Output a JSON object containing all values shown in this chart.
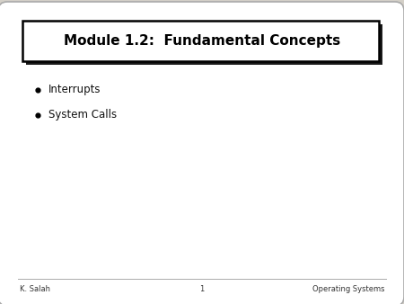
{
  "title": "Module 1.2:  Fundamental Concepts",
  "bullet_items": [
    "Interrupts",
    "System Calls"
  ],
  "footer_left": "K. Salah",
  "footer_center": "1",
  "footer_right": "Operating Systems",
  "bg_color": "#d4d0c8",
  "slide_bg": "#ffffff",
  "title_fontsize": 11,
  "bullet_fontsize": 8.5,
  "footer_fontsize": 6,
  "title_box_color": "#ffffff",
  "title_box_edge": "#000000",
  "title_shadow_color": "#1a1a1a",
  "slide_edge_color": "#aaaaaa",
  "footer_line_color": "#aaaaaa"
}
